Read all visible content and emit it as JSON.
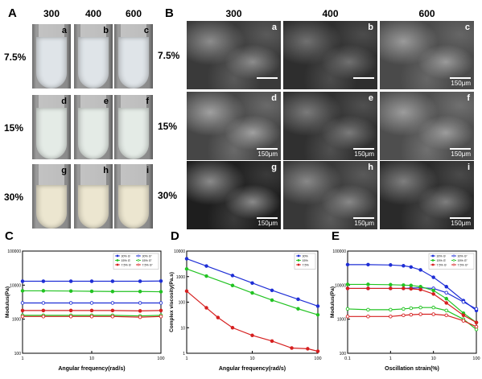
{
  "panel_A": {
    "label": "A",
    "columns": [
      "300",
      "400",
      "600"
    ],
    "rows": [
      "7.5%",
      "15%",
      "30%"
    ],
    "letters": [
      "a",
      "b",
      "c",
      "d",
      "e",
      "f",
      "g",
      "h",
      "i"
    ]
  },
  "panel_B": {
    "label": "B",
    "columns": [
      "300",
      "400",
      "600"
    ],
    "rows": [
      "7.5%",
      "15%",
      "30%"
    ],
    "letters": [
      "a",
      "b",
      "c",
      "d",
      "e",
      "f",
      "g",
      "h",
      "i"
    ],
    "scalebars": [
      "",
      "",
      "150μm",
      "150μm",
      "150μm",
      "150μm",
      "150μm",
      "150μm",
      "150μm"
    ]
  },
  "chart_data": [
    {
      "panel": "C",
      "type": "line",
      "xlabel": "Angular frequency(rad/s)",
      "ylabel": "Modulus(Pa)",
      "xscale": "log",
      "yscale": "log",
      "xlim": [
        1,
        100
      ],
      "ylim": [
        100,
        100000
      ],
      "xticks": [
        "1",
        "10",
        "100"
      ],
      "yticks": [
        "100",
        "1000",
        "10000",
        "100000"
      ],
      "legend_position": "top-right",
      "series": [
        {
          "name": "30% G'",
          "color": "#1f2fd6",
          "marker": "filled",
          "x": [
            1,
            2,
            5,
            10,
            20,
            50,
            100
          ],
          "y": [
            13000,
            13000,
            13000,
            13000,
            13000,
            13000,
            13200
          ]
        },
        {
          "name": "30% G''",
          "color": "#1f2fd6",
          "marker": "open",
          "x": [
            1,
            2,
            5,
            10,
            20,
            50,
            100
          ],
          "y": [
            3000,
            3000,
            3000,
            3000,
            3000,
            3000,
            3000
          ]
        },
        {
          "name": "15% G'",
          "color": "#22c322",
          "marker": "filled",
          "x": [
            1,
            2,
            5,
            10,
            20,
            50,
            100
          ],
          "y": [
            6800,
            6800,
            6700,
            6600,
            6500,
            6500,
            6400
          ]
        },
        {
          "name": "15% G''",
          "color": "#22c322",
          "marker": "open",
          "x": [
            1,
            2,
            5,
            10,
            20,
            50,
            100
          ],
          "y": [
            1300,
            1300,
            1300,
            1300,
            1300,
            1250,
            1300
          ]
        },
        {
          "name": "7.5% G'",
          "color": "#d62020",
          "marker": "filled",
          "x": [
            1,
            2,
            5,
            10,
            20,
            50,
            100
          ],
          "y": [
            1800,
            1800,
            1800,
            1800,
            1800,
            1750,
            1800
          ]
        },
        {
          "name": "7.5% G''",
          "color": "#d62020",
          "marker": "open",
          "x": [
            1,
            2,
            5,
            10,
            20,
            50,
            100
          ],
          "y": [
            1200,
            1200,
            1200,
            1200,
            1200,
            1150,
            1200
          ]
        }
      ]
    },
    {
      "panel": "D",
      "type": "line",
      "xlabel": "Angular frequency(rad/s)",
      "ylabel": "Complex viscosity(Pa.s)",
      "xscale": "log",
      "yscale": "log",
      "xlim": [
        1,
        100
      ],
      "ylim": [
        1,
        10000
      ],
      "xticks": [
        "1",
        "10",
        "100"
      ],
      "yticks": [
        "1",
        "10",
        "100",
        "1000",
        "10000"
      ],
      "legend_position": "top-right",
      "series": [
        {
          "name": "30%",
          "color": "#1f2fd6",
          "marker": "filled",
          "x": [
            1,
            2,
            5,
            10,
            20,
            50,
            100
          ],
          "y": [
            5000,
            2600,
            1100,
            560,
            290,
            130,
            70
          ]
        },
        {
          "name": "15%",
          "color": "#22c322",
          "marker": "filled",
          "x": [
            1,
            2,
            5,
            10,
            20,
            50,
            100
          ],
          "y": [
            2000,
            1050,
            450,
            230,
            120,
            55,
            32
          ]
        },
        {
          "name": "7.5%",
          "color": "#d62020",
          "marker": "filled",
          "x": [
            1,
            2,
            3,
            5,
            10,
            20,
            40,
            70,
            100
          ],
          "y": [
            270,
            60,
            25,
            10,
            5,
            3,
            1.6,
            1.5,
            1.2
          ]
        }
      ]
    },
    {
      "panel": "E",
      "type": "line",
      "xlabel": "Oscillation strain(%)",
      "ylabel": "Modulus(Pa)",
      "xscale": "log",
      "yscale": "log",
      "xlim": [
        0.1,
        100
      ],
      "ylim": [
        100,
        100000
      ],
      "xticks": [
        "0.1",
        "1",
        "10",
        "100"
      ],
      "yticks": [
        "100",
        "1000",
        "10000",
        "100000"
      ],
      "legend_position": "top-right",
      "series": [
        {
          "name": "30% G'",
          "color": "#1f2fd6",
          "marker": "filled",
          "x": [
            0.1,
            0.3,
            1,
            2,
            3,
            5,
            10,
            20,
            50,
            100
          ],
          "y": [
            40000,
            40000,
            39000,
            37000,
            34000,
            28000,
            17000,
            9000,
            3500,
            1800
          ]
        },
        {
          "name": "30% G''",
          "color": "#1f2fd6",
          "marker": "open",
          "x": [
            0.1,
            0.3,
            1,
            2,
            3,
            5,
            10,
            20,
            50,
            100
          ],
          "y": [
            8000,
            8000,
            8000,
            8000,
            8200,
            8400,
            8000,
            6000,
            3200,
            2000
          ]
        },
        {
          "name": "15% G'",
          "color": "#22c322",
          "marker": "filled",
          "x": [
            0.1,
            0.3,
            1,
            2,
            3,
            5,
            10,
            20,
            50,
            100
          ],
          "y": [
            10500,
            10500,
            10300,
            10000,
            9800,
            9000,
            7000,
            4000,
            1500,
            800
          ]
        },
        {
          "name": "15% G''",
          "color": "#22c322",
          "marker": "open",
          "x": [
            0.1,
            0.3,
            1,
            2,
            3,
            5,
            10,
            20,
            50,
            100
          ],
          "y": [
            2000,
            1900,
            1900,
            2000,
            2100,
            2200,
            2200,
            1800,
            1000,
            500
          ]
        },
        {
          "name": "7.5% G'",
          "color": "#d62020",
          "marker": "filled",
          "x": [
            0.1,
            0.3,
            1,
            2,
            3,
            5,
            10,
            20,
            50,
            100
          ],
          "y": [
            8000,
            8000,
            8000,
            8000,
            7800,
            7400,
            5500,
            3000,
            1300,
            800
          ]
        },
        {
          "name": "7.5% G''",
          "color": "#d62020",
          "marker": "open",
          "x": [
            0.1,
            0.3,
            1,
            2,
            3,
            5,
            10,
            20,
            50,
            100
          ],
          "y": [
            1200,
            1200,
            1200,
            1300,
            1350,
            1400,
            1400,
            1300,
            900,
            600
          ]
        }
      ]
    }
  ]
}
